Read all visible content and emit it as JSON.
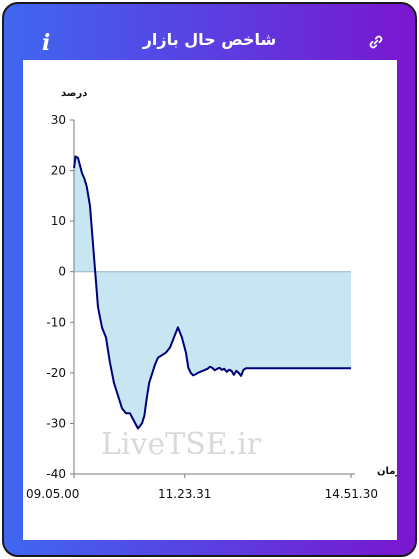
{
  "header": {
    "title": "شاخص حال بازار",
    "info_icon": "info-icon",
    "link_icon": "link-icon"
  },
  "colors": {
    "gradient_start": "#3f67f0",
    "gradient_end": "#7a16cf",
    "line": "#00007a",
    "fill": "#c8e6f2"
  },
  "watermark": "LiveTSE.ir",
  "chart_data": {
    "type": "area",
    "ylabel": "درصد",
    "xlabel": "زمان",
    "ylim": [
      -40,
      30
    ],
    "yticks": [
      30,
      20,
      10,
      0,
      -10,
      -20,
      -30,
      -40
    ],
    "xtick_labels": [
      "09.05.00",
      "11.23.31",
      "14.51.30"
    ],
    "x_range_seconds": [
      32700,
      53490
    ],
    "baseline": 0,
    "series": [
      {
        "x": [
          "09.05.00",
          "09.07.00",
          "09.10.00",
          "09.12.00",
          "09.15.00",
          "09.18.00",
          "09.21.00",
          "09.25.00",
          "09.30.00",
          "09.35.00",
          "09.40.00",
          "09.45.00",
          "09.50.00",
          "09.55.00",
          "10.00.00",
          "10.05.00",
          "10.10.00",
          "10.15.00",
          "10.20.00",
          "10.25.00",
          "10.30.00",
          "10.33.00",
          "10.36.00",
          "10.39.00",
          "10.42.00",
          "10.46.00",
          "10.50.00",
          "10.55.00",
          "11.00.00",
          "11.05.00",
          "11.10.00",
          "11.15.00",
          "11.20.00",
          "11.25.00",
          "11.28.00",
          "11.31.00",
          "11.34.00",
          "11.37.00",
          "11.40.00",
          "11.43.00",
          "11.46.00",
          "11.49.00",
          "11.52.00",
          "11.55.00",
          "11.58.00",
          "12.01.00",
          "12.04.00",
          "12.07.00",
          "12.10.00",
          "12.13.00",
          "12.16.00",
          "12.19.00",
          "12.22.00",
          "12.25.00",
          "12.28.00",
          "12.31.00",
          "12.34.00",
          "12.37.00",
          "12.40.00",
          "12.45.00",
          "12.50.00",
          "13.00.00",
          "13.30.00",
          "14.00.00",
          "14.30.00",
          "14.51.30"
        ],
        "values": [
          20.5,
          22.8,
          22.5,
          21.3,
          19.5,
          18.4,
          16.8,
          13,
          3,
          -7,
          -11,
          -13,
          -18,
          -22,
          -24.5,
          -27,
          -28,
          -28,
          -29.5,
          -31,
          -30,
          -28.5,
          -25,
          -22,
          -20.5,
          -18.5,
          -17,
          -16.5,
          -16,
          -15,
          -13,
          -11,
          -13,
          -16,
          -19,
          -20,
          -20.5,
          -20.3,
          -20,
          -19.8,
          -19.6,
          -19.4,
          -19.2,
          -18.8,
          -19,
          -19.5,
          -19.2,
          -19,
          -19.4,
          -19.2,
          -19.8,
          -19.4,
          -19.6,
          -20.4,
          -19.6,
          -20,
          -20.6,
          -19.4,
          -19.1,
          -19.1,
          -19.1,
          -19.1,
          -19.1,
          -19.1,
          -19.1,
          -19.1
        ]
      }
    ]
  }
}
